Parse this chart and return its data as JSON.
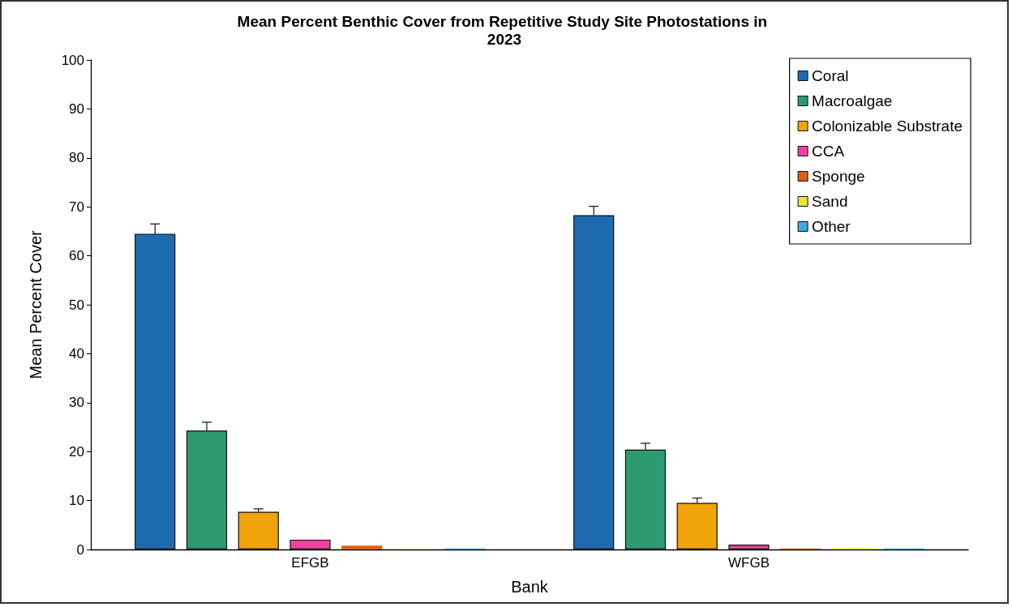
{
  "chart_data": {
    "type": "bar",
    "title": "Mean Percent Benthic Cover from Repetitive Study Site Photostations in 2023",
    "xlabel": "Bank",
    "ylabel": "Mean Percent Cover",
    "categories": [
      "EFGB",
      "WFGB"
    ],
    "series": [
      {
        "name": "Coral",
        "color": "#1f6bb0",
        "values": [
          64.5,
          68.3
        ],
        "errors": [
          [
            64.5,
            66.5
          ],
          [
            68.3,
            70.1
          ]
        ]
      },
      {
        "name": "Macroalgae",
        "color": "#2e9a6f",
        "values": [
          24.3,
          20.4
        ],
        "errors": [
          [
            24.3,
            26.0
          ],
          [
            20.4,
            21.7
          ]
        ]
      },
      {
        "name": "Colonizable Substrate",
        "color": "#f0a30a",
        "values": [
          7.7,
          9.5
        ],
        "errors": [
          [
            7.7,
            8.3
          ],
          [
            9.5,
            10.5
          ]
        ]
      },
      {
        "name": "CCA",
        "color": "#f040a0",
        "values": [
          2.0,
          1.0
        ],
        "errors": [
          null,
          null
        ]
      },
      {
        "name": "Sponge",
        "color": "#e06010",
        "values": [
          0.8,
          0.2
        ],
        "errors": [
          null,
          null
        ]
      },
      {
        "name": "Sand",
        "color": "#e8e830",
        "values": [
          0.1,
          0.3
        ],
        "errors": [
          null,
          null
        ]
      },
      {
        "name": "Other",
        "color": "#40a8e0",
        "values": [
          0.2,
          0.2
        ],
        "errors": [
          null,
          null
        ]
      }
    ],
    "ylim": [
      0,
      100
    ],
    "yticks": [
      0,
      10,
      20,
      30,
      40,
      50,
      60,
      70,
      80,
      90,
      100
    ],
    "grid": false,
    "legend": "top right"
  }
}
